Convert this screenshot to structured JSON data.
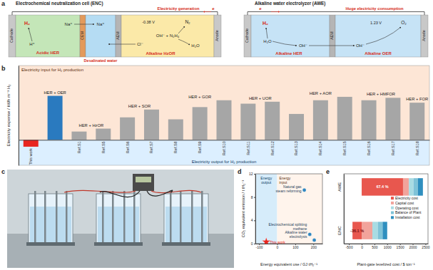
{
  "diagram": {
    "panel": "a",
    "enc": {
      "title": "Electrochemical neutralization cell (ENC)",
      "power": "Electricity generation",
      "electron": "e",
      "cathode": "Cathode",
      "cem": "CEM",
      "aem": "AEM",
      "anode": "Anode",
      "cathode_gas": "H₂",
      "cathode_ion": "H⁺",
      "cation_left": "Na⁺",
      "cation_right": "Na⁺",
      "anion": "Cl⁻",
      "potential": "-0.38 V",
      "anode_gas": "N₂",
      "reactants": "OH⁻ + N₂H₄",
      "product": "H₂O",
      "cathode_reaction": "Acidic HER",
      "anode_reaction": "Alkaline HzOR",
      "middle": "Desalinated water"
    },
    "awe": {
      "title": "Alkaline water electrolyzer (AWE)",
      "power": "Huge electricity consumption",
      "electron": "e",
      "cathode": "Cathode",
      "aem": "AEM",
      "anode": "Anode",
      "cathode_gas": "H₂",
      "reactant": "H₂O",
      "ion_left": "OH⁻",
      "ion_right": "OH⁻",
      "potential": "1.23 V",
      "anode_gas": "O₂",
      "cathode_reaction": "Alkaline HER",
      "anode_reaction": "Alkaline OER"
    }
  },
  "photo": {
    "panel": "c"
  },
  "chart_data": [
    {
      "panel": "b",
      "type": "bar",
      "y_label": "Electricity expense / kWh m⁻³ H₂",
      "categories": [
        "This work",
        null,
        "Ref.S1",
        "Ref.S5",
        "Ref.S6",
        "Ref.S7",
        "Ref.S8",
        "Ref.S9",
        "Ref.S10",
        "Ref.S11",
        "Ref.S12",
        "Ref.S13",
        "Ref.S14",
        "Ref.S15",
        "Ref.S16",
        "Ref.S17",
        "Ref.S18"
      ],
      "groups": [
        null,
        "HER + OER",
        "HER + HzOR",
        "HER + HzOR",
        "HER + SOR",
        "HER + SOR",
        "HER + GOR",
        "HER + GOR",
        "HER + GOR",
        "HER + UOR",
        "HER + UOR",
        "HER + AOR",
        "HER + AOR",
        "HER + AOR",
        "HER + HMFOR",
        "HER + HMFOR",
        "HER + FOR"
      ],
      "values": [
        -0.7,
        4.5,
        0.85,
        1.15,
        2.3,
        3.1,
        2.1,
        3.35,
        4.05,
        3.7,
        3.9,
        2.65,
        4.05,
        4.4,
        4.05,
        4.3,
        3.8
      ],
      "colors": [
        "#e8251f",
        "#2a7abf",
        "#a6a6a6",
        "#a6a6a6",
        "#a6a6a6",
        "#a6a6a6",
        "#a6a6a6",
        "#a6a6a6",
        "#a6a6a6",
        "#a6a6a6",
        "#a6a6a6",
        "#a6a6a6",
        "#a6a6a6",
        "#a6a6a6",
        "#a6a6a6",
        "#a6a6a6",
        "#a6a6a6"
      ],
      "ylim": [
        -2.6,
        7.6
      ],
      "boundary": 0,
      "annotations": {
        "above": "Electricity input for H₂ production",
        "below": "Electricity output for H₂ production"
      },
      "tick_labels": "x"
    },
    {
      "panel": "d",
      "type": "scatter",
      "x_label": "Energy equivalent use / GJ tH₂⁻¹",
      "y_label": "CO₂ equivalent emission / t tH₂⁻¹",
      "boundary": 0,
      "annotations": {
        "left": "Energy output",
        "right": "Energy input"
      },
      "series": [
        {
          "color": "#e8251f",
          "marker": "star",
          "x": [
            -60
          ],
          "values": [
            0.3
          ],
          "point_labels": [
            "This work"
          ]
        },
        {
          "color": "#2e86c1",
          "marker": "circle",
          "x": [
            150,
            180,
            205
          ],
          "values": [
            9.2,
            1.6,
            0.6
          ],
          "point_labels": [
            "Natural gas steam reforming",
            "Electrochemical splitting methane",
            "Alkaline water electrolysis"
          ]
        }
      ],
      "xlim": [
        -120,
        250
      ],
      "xticks": [
        -100,
        0,
        100,
        200
      ],
      "ylim": [
        0,
        12
      ],
      "yticks": [
        0,
        4,
        8,
        12
      ]
    },
    {
      "panel": "e",
      "type": "bar",
      "orientation": "horizontal",
      "stacked": true,
      "x_label": "Plant-gate levelized cost / $ ton⁻¹",
      "categories": [
        "AWE",
        "ENC"
      ],
      "series": [
        {
          "name": "Electricity cost",
          "color": "#e8574e",
          "values": [
            1620,
            -360
          ],
          "share_labels": [
            "67.4 %",
            "-36.1 %"
          ]
        },
        {
          "name": "Capital cost",
          "color": "#f2a39b",
          "values": [
            230,
            420
          ]
        },
        {
          "name": "Operating cost",
          "color": "#a9dce3",
          "values": [
            180,
            220
          ]
        },
        {
          "name": "Balance of Plant",
          "color": "#7fc3d8",
          "values": [
            170,
            180
          ]
        },
        {
          "name": "Installation cost",
          "color": "#2f8fbf",
          "values": [
            200,
            180
          ]
        }
      ],
      "xlim": [
        -700,
        2600
      ],
      "xticks": [
        -500,
        0,
        500,
        1000,
        1500,
        2000,
        2500
      ],
      "legend": "right"
    }
  ]
}
